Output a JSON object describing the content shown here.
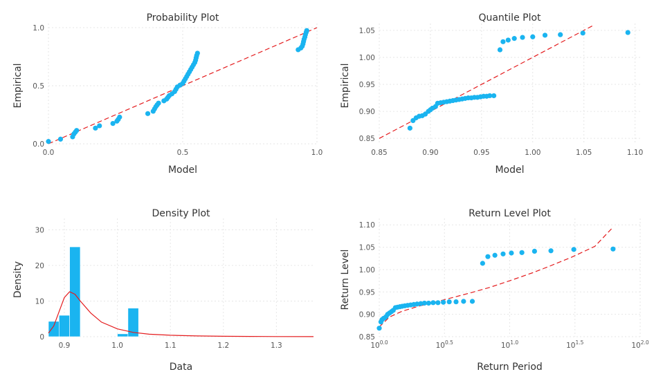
{
  "chart_data": [
    {
      "type": "scatter",
      "title": "Probability Plot",
      "xlabel": "Model",
      "ylabel": "Empirical",
      "xlim": [
        0.0,
        1.0
      ],
      "ylim": [
        0.0,
        1.0
      ],
      "xticks": [
        0.0,
        0.5,
        1.0
      ],
      "xtick_labels": [
        "0.0",
        "0.5",
        "1.0"
      ],
      "yticks": [
        0.0,
        0.5,
        1.0
      ],
      "ytick_labels": [
        "0.0",
        "0.5",
        "1.0"
      ],
      "grid": true,
      "reference_line": {
        "from": [
          0.0,
          0.0
        ],
        "to": [
          1.0,
          1.0
        ],
        "color": "#e41a1c",
        "style": "dashed"
      },
      "point_color": "#1ab4f0",
      "points": [
        [
          0.0,
          0.02
        ],
        [
          0.045,
          0.04
        ],
        [
          0.09,
          0.06
        ],
        [
          0.095,
          0.085
        ],
        [
          0.1,
          0.1
        ],
        [
          0.105,
          0.115
        ],
        [
          0.175,
          0.135
        ],
        [
          0.19,
          0.155
        ],
        [
          0.24,
          0.175
        ],
        [
          0.255,
          0.195
        ],
        [
          0.26,
          0.21
        ],
        [
          0.265,
          0.23
        ],
        [
          0.37,
          0.26
        ],
        [
          0.39,
          0.28
        ],
        [
          0.395,
          0.3
        ],
        [
          0.4,
          0.32
        ],
        [
          0.405,
          0.335
        ],
        [
          0.41,
          0.35
        ],
        [
          0.43,
          0.37
        ],
        [
          0.44,
          0.385
        ],
        [
          0.445,
          0.4
        ],
        [
          0.45,
          0.415
        ],
        [
          0.46,
          0.43
        ],
        [
          0.47,
          0.45
        ],
        [
          0.475,
          0.47
        ],
        [
          0.48,
          0.49
        ],
        [
          0.49,
          0.505
        ],
        [
          0.5,
          0.52
        ],
        [
          0.505,
          0.54
        ],
        [
          0.51,
          0.56
        ],
        [
          0.515,
          0.58
        ],
        [
          0.52,
          0.6
        ],
        [
          0.525,
          0.62
        ],
        [
          0.53,
          0.64
        ],
        [
          0.535,
          0.66
        ],
        [
          0.54,
          0.68
        ],
        [
          0.545,
          0.7
        ],
        [
          0.548,
          0.72
        ],
        [
          0.55,
          0.74
        ],
        [
          0.552,
          0.76
        ],
        [
          0.555,
          0.78
        ],
        [
          0.93,
          0.81
        ],
        [
          0.94,
          0.825
        ],
        [
          0.945,
          0.84
        ],
        [
          0.948,
          0.86
        ],
        [
          0.95,
          0.88
        ],
        [
          0.952,
          0.9
        ],
        [
          0.955,
          0.92
        ],
        [
          0.957,
          0.94
        ],
        [
          0.96,
          0.96
        ],
        [
          0.962,
          0.975
        ]
      ]
    },
    {
      "type": "scatter",
      "title": "Quantile Plot",
      "xlabel": "Model",
      "ylabel": "Empirical",
      "xlim": [
        0.85,
        1.105
      ],
      "ylim": [
        0.84,
        1.055
      ],
      "xticks": [
        0.85,
        0.9,
        0.95,
        1.0,
        1.05,
        1.1
      ],
      "xtick_labels": [
        "0.85",
        "0.90",
        "0.95",
        "1.00",
        "1.05",
        "1.10"
      ],
      "yticks": [
        0.85,
        0.9,
        0.95,
        1.0,
        1.05
      ],
      "ytick_labels": [
        "0.85",
        "0.90",
        "0.95",
        "1.00",
        "1.05"
      ],
      "grid": true,
      "reference_line": {
        "from": [
          0.85,
          0.85
        ],
        "to": [
          1.06,
          1.06
        ],
        "color": "#e41a1c",
        "style": "dashed"
      },
      "point_color": "#1ab4f0",
      "points": [
        [
          0.88,
          0.869
        ],
        [
          0.883,
          0.883
        ],
        [
          0.886,
          0.888
        ],
        [
          0.889,
          0.891
        ],
        [
          0.892,
          0.892
        ],
        [
          0.895,
          0.895
        ],
        [
          0.898,
          0.9
        ],
        [
          0.9,
          0.903
        ],
        [
          0.902,
          0.906
        ],
        [
          0.905,
          0.909
        ],
        [
          0.907,
          0.915
        ],
        [
          0.91,
          0.916
        ],
        [
          0.913,
          0.917
        ],
        [
          0.916,
          0.918
        ],
        [
          0.919,
          0.919
        ],
        [
          0.922,
          0.92
        ],
        [
          0.925,
          0.921
        ],
        [
          0.928,
          0.922
        ],
        [
          0.931,
          0.923
        ],
        [
          0.934,
          0.924
        ],
        [
          0.937,
          0.925
        ],
        [
          0.94,
          0.925
        ],
        [
          0.943,
          0.926
        ],
        [
          0.946,
          0.926
        ],
        [
          0.949,
          0.927
        ],
        [
          0.952,
          0.928
        ],
        [
          0.955,
          0.928
        ],
        [
          0.958,
          0.929
        ],
        [
          0.962,
          0.929
        ],
        [
          0.968,
          1.014
        ],
        [
          0.971,
          1.029
        ],
        [
          0.976,
          1.032
        ],
        [
          0.982,
          1.035
        ],
        [
          0.99,
          1.037
        ],
        [
          1.0,
          1.038
        ],
        [
          1.012,
          1.041
        ],
        [
          1.027,
          1.042
        ],
        [
          1.049,
          1.045
        ],
        [
          1.093,
          1.046
        ]
      ]
    },
    {
      "type": "histogram",
      "title": "Density Plot",
      "xlabel": "Data",
      "ylabel": "Density",
      "xlim": [
        0.87,
        1.37
      ],
      "ylim": [
        0,
        32
      ],
      "xticks": [
        0.9,
        1.0,
        1.1,
        1.2,
        1.3
      ],
      "xtick_labels": [
        "0.9",
        "1.0",
        "1.1",
        "1.2",
        "1.3"
      ],
      "yticks": [
        0,
        10,
        20,
        30
      ],
      "ytick_labels": [
        "0",
        "10",
        "20",
        "30"
      ],
      "grid": true,
      "bar_color": "#1ab4f0",
      "bins": [
        {
          "x0": 0.87,
          "x1": 0.89,
          "value": 4.3
        },
        {
          "x0": 0.89,
          "x1": 0.91,
          "value": 6.0
        },
        {
          "x0": 0.91,
          "x1": 0.93,
          "value": 25.2
        },
        {
          "x0": 1.0,
          "x1": 1.02,
          "value": 0.8
        },
        {
          "x0": 1.02,
          "x1": 1.04,
          "value": 8.0
        }
      ],
      "curve_color": "#e41a1c",
      "curve": [
        [
          0.87,
          1.0
        ],
        [
          0.88,
          3.0
        ],
        [
          0.89,
          7.0
        ],
        [
          0.9,
          11.0
        ],
        [
          0.91,
          12.6
        ],
        [
          0.92,
          11.9
        ],
        [
          0.93,
          10.0
        ],
        [
          0.95,
          6.6
        ],
        [
          0.97,
          4.1
        ],
        [
          1.0,
          2.2
        ],
        [
          1.03,
          1.2
        ],
        [
          1.06,
          0.7
        ],
        [
          1.1,
          0.4
        ],
        [
          1.15,
          0.22
        ],
        [
          1.2,
          0.12
        ],
        [
          1.25,
          0.07
        ],
        [
          1.3,
          0.04
        ],
        [
          1.37,
          0.02
        ]
      ]
    },
    {
      "type": "scatter",
      "title": "Return Level Plot",
      "xlabel": "Return Period",
      "ylabel": "Return Level",
      "xscale": "log10",
      "xlim": [
        1,
        100
      ],
      "ylim": [
        0.85,
        1.105
      ],
      "xticks": [
        1,
        3.1623,
        10,
        31.623,
        100
      ],
      "xtick_labels": [
        {
          "base": "10",
          "exp": "0.0"
        },
        {
          "base": "10",
          "exp": "0.5"
        },
        {
          "base": "10",
          "exp": "1.0"
        },
        {
          "base": "10",
          "exp": "1.5"
        },
        {
          "base": "10",
          "exp": "2.0"
        }
      ],
      "yticks": [
        0.85,
        0.9,
        0.95,
        1.0,
        1.05,
        1.1
      ],
      "ytick_labels": [
        "0.85",
        "0.90",
        "0.95",
        "1.00",
        "1.05",
        "1.10"
      ],
      "grid": true,
      "point_color": "#1ab4f0",
      "points": [
        [
          1.0,
          0.869
        ],
        [
          1.03,
          0.883
        ],
        [
          1.05,
          0.888
        ],
        [
          1.08,
          0.891
        ],
        [
          1.1,
          0.892
        ],
        [
          1.13,
          0.895
        ],
        [
          1.16,
          0.9
        ],
        [
          1.2,
          0.903
        ],
        [
          1.24,
          0.906
        ],
        [
          1.28,
          0.909
        ],
        [
          1.33,
          0.915
        ],
        [
          1.38,
          0.916
        ],
        [
          1.44,
          0.917
        ],
        [
          1.5,
          0.918
        ],
        [
          1.57,
          0.919
        ],
        [
          1.65,
          0.92
        ],
        [
          1.74,
          0.921
        ],
        [
          1.84,
          0.922
        ],
        [
          1.95,
          0.923
        ],
        [
          2.08,
          0.924
        ],
        [
          2.22,
          0.925
        ],
        [
          2.39,
          0.925
        ],
        [
          2.59,
          0.926
        ],
        [
          2.82,
          0.926
        ],
        [
          3.1,
          0.927
        ],
        [
          3.44,
          0.928
        ],
        [
          3.88,
          0.928
        ],
        [
          4.43,
          0.929
        ],
        [
          5.17,
          0.929
        ],
        [
          6.2,
          1.014
        ],
        [
          6.8,
          1.029
        ],
        [
          7.7,
          1.032
        ],
        [
          8.9,
          1.035
        ],
        [
          10.3,
          1.037
        ],
        [
          12.4,
          1.038
        ],
        [
          15.5,
          1.041
        ],
        [
          20.7,
          1.042
        ],
        [
          31.0,
          1.045
        ],
        [
          62.0,
          1.046
        ]
      ],
      "curve_color": "#e41a1c",
      "curve": [
        [
          1.0,
          0.872
        ],
        [
          1.2,
          0.894
        ],
        [
          1.5,
          0.907
        ],
        [
          2.0,
          0.918
        ],
        [
          3.0,
          0.931
        ],
        [
          5.0,
          0.948
        ],
        [
          7.0,
          0.96
        ],
        [
          10.0,
          0.975
        ],
        [
          15.0,
          0.993
        ],
        [
          20.0,
          1.007
        ],
        [
          30.0,
          1.028
        ],
        [
          45.0,
          1.052
        ],
        [
          62.0,
          1.095
        ]
      ]
    }
  ]
}
